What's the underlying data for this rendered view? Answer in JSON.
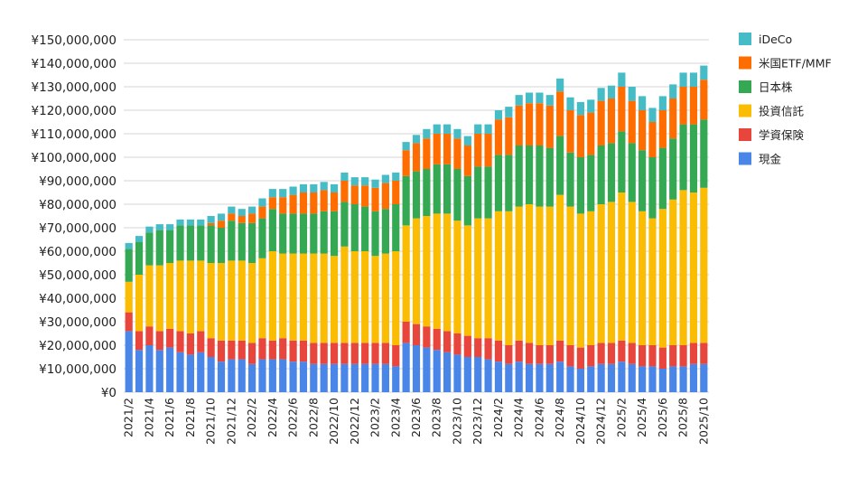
{
  "chart_data": {
    "type": "stacked-bar",
    "ylim": [
      0,
      150000000
    ],
    "yticks": [
      "¥0",
      "¥10,000,000",
      "¥20,000,000",
      "¥30,000,000",
      "¥40,000,000",
      "¥50,000,000",
      "¥60,000,000",
      "¥70,000,000",
      "¥80,000,000",
      "¥90,000,000",
      "¥100,000,000",
      "¥110,000,000",
      "¥120,000,000",
      "¥130,000,000",
      "¥140,000,000",
      "¥150,000,000"
    ],
    "grid": true,
    "legend_position": "right",
    "categories": [
      "2021/2",
      "2021/3",
      "2021/4",
      "2021/5",
      "2021/6",
      "2021/7",
      "2021/8",
      "2021/9",
      "2021/10",
      "2021/11",
      "2021/12",
      "2022/1",
      "2022/2",
      "2022/3",
      "2022/4",
      "2022/5",
      "2022/6",
      "2022/7",
      "2022/8",
      "2022/9",
      "2022/10",
      "2022/11",
      "2022/12",
      "2023/1",
      "2023/2",
      "2023/3",
      "2023/4",
      "2023/5",
      "2023/6",
      "2023/7",
      "2023/8",
      "2023/9",
      "2023/10",
      "2023/11",
      "2023/12",
      "2024/1",
      "2024/2",
      "2024/3",
      "2024/4",
      "2024/5",
      "2024/6",
      "2024/7",
      "2024/8",
      "2024/9",
      "2024/10",
      "2024/11",
      "2024/12",
      "2025/1",
      "2025/2",
      "2025/3",
      "2025/4",
      "2025/5",
      "2025/6",
      "2025/7",
      "2025/8",
      "2025/9",
      "2025/10"
    ],
    "xtick_labels": [
      "2021/2",
      "2021/4",
      "2021/6",
      "2021/8",
      "2021/10",
      "2021/12",
      "2022/2",
      "2022/4",
      "2022/6",
      "2022/8",
      "2022/10",
      "2022/12",
      "2023/2",
      "2023/4",
      "2023/6",
      "2023/8",
      "2023/10",
      "2023/12",
      "2024/2",
      "2024/4",
      "2024/6",
      "2024/8",
      "2024/10",
      "2024/12",
      "2025/2",
      "2025/4",
      "2025/6",
      "2025/8",
      "2025/10"
    ],
    "series": [
      {
        "name": "現金",
        "color": "#4a86e8",
        "values": [
          26,
          18,
          20,
          18,
          19,
          17,
          16,
          17,
          15,
          13,
          14,
          14,
          12,
          14,
          14,
          14,
          13,
          13,
          12,
          12,
          12,
          12,
          12,
          12,
          12,
          12,
          11,
          21,
          20,
          19,
          18,
          17,
          16,
          15,
          15,
          14,
          13,
          12,
          13,
          12,
          12,
          12,
          13,
          11,
          10,
          11,
          12,
          12,
          13,
          12,
          11,
          11,
          10,
          11,
          11,
          12,
          12
        ]
      },
      {
        "name": "学資保険",
        "color": "#e8453c",
        "values": [
          8,
          8,
          8,
          8,
          8,
          9,
          9,
          9,
          8,
          9,
          8,
          8,
          9,
          9,
          8,
          9,
          9,
          9,
          9,
          9,
          9,
          9,
          9,
          9,
          9,
          9,
          9,
          9,
          9,
          9,
          9,
          9,
          9,
          9,
          8,
          9,
          9,
          8,
          9,
          9,
          8,
          8,
          9,
          9,
          9,
          9,
          9,
          9,
          9,
          9,
          9,
          9,
          9,
          9,
          9,
          9,
          9
        ]
      },
      {
        "name": "投資信託",
        "color": "#fbbc04",
        "values": [
          13,
          24,
          26,
          28,
          28,
          30,
          31,
          30,
          32,
          33,
          34,
          34,
          34,
          34,
          38,
          36,
          37,
          37,
          38,
          38,
          37,
          41,
          39,
          39,
          37,
          38,
          40,
          41,
          45,
          47,
          49,
          50,
          48,
          47,
          51,
          51,
          55,
          57,
          57,
          59,
          59,
          59,
          62,
          59,
          57,
          57,
          59,
          60,
          63,
          60,
          57,
          54,
          59,
          62,
          66,
          64,
          66
        ]
      },
      {
        "name": "日本株",
        "color": "#34a853",
        "values": [
          14,
          14,
          14,
          15,
          14,
          15,
          15,
          15,
          16,
          15,
          17,
          16,
          17,
          17,
          18,
          17,
          17,
          17,
          17,
          18,
          19,
          19,
          20,
          19,
          19,
          19,
          20,
          21,
          20,
          20,
          21,
          21,
          22,
          21,
          22,
          22,
          24,
          24,
          26,
          25,
          26,
          25,
          25,
          23,
          24,
          24,
          25,
          25,
          26,
          25,
          26,
          26,
          26,
          26,
          28,
          29,
          29
        ]
      },
      {
        "name": "米国ETF/MMF",
        "color": "#ff6d01",
        "values": [
          0,
          0,
          0,
          0,
          0,
          0,
          0,
          0,
          1,
          3,
          3,
          3,
          4,
          5,
          5,
          7,
          8,
          9,
          9,
          9,
          8,
          9,
          8,
          9,
          10,
          11,
          10,
          11,
          12,
          13,
          13,
          13,
          13,
          13,
          14,
          14,
          15,
          16,
          17,
          18,
          18,
          18,
          19,
          18,
          18,
          18,
          19,
          19,
          19,
          18,
          17,
          15,
          16,
          17,
          16,
          16,
          17
        ]
      },
      {
        "name": "iDeCo",
        "color": "#46bdc6",
        "values": [
          2.5,
          2.5,
          2.5,
          2.5,
          2.5,
          2.5,
          2.5,
          2.5,
          3,
          3,
          3,
          3,
          3,
          3.5,
          3.5,
          3.5,
          3.5,
          3.5,
          3.5,
          3.5,
          3.5,
          3.5,
          3.5,
          3.5,
          3.5,
          3.5,
          3.5,
          3.5,
          3.5,
          4,
          4,
          4,
          4,
          4,
          4,
          4,
          4,
          4.5,
          4.5,
          4.5,
          4.5,
          4.5,
          5.5,
          5.5,
          5.5,
          5.5,
          5.5,
          5.5,
          6,
          6,
          6,
          6,
          6,
          6,
          6,
          6,
          6
        ]
      }
    ],
    "value_unit": 1000000
  }
}
